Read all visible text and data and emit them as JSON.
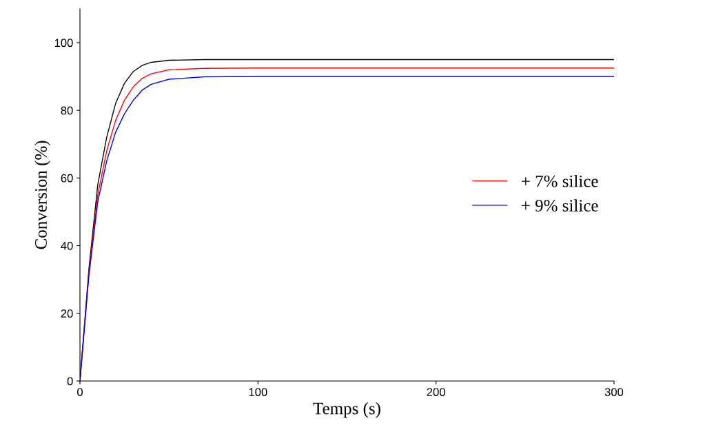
{
  "chart_data": {
    "type": "line",
    "xlabel": "Temps (s)",
    "ylabel": "Conversion (%)",
    "xlim": [
      0,
      300
    ],
    "ylim": [
      0,
      110
    ],
    "xticks": [
      0,
      100,
      200,
      300
    ],
    "yticks": [
      0,
      20,
      40,
      60,
      80,
      100
    ],
    "grid": false,
    "legend": "center right",
    "marker": "none",
    "line_style": "solid",
    "series": [
      {
        "color": "#000000",
        "x": [
          0,
          5,
          10,
          15,
          20,
          25,
          30,
          35,
          40,
          50,
          70,
          300
        ],
        "values": [
          0,
          33,
          58,
          72,
          82,
          88,
          91.5,
          93.3,
          94.2,
          94.8,
          95,
          95
        ]
      },
      {
        "name": "+ 7% silice",
        "color": "#ff0000",
        "x": [
          0,
          5,
          10,
          15,
          20,
          25,
          30,
          35,
          40,
          50,
          70,
          100,
          300
        ],
        "values": [
          0,
          32,
          55,
          68,
          77,
          83,
          87,
          89.5,
          90.8,
          92,
          92.4,
          92.5,
          92.5
        ]
      },
      {
        "name": "+ 9% silice",
        "color": "#0000ff",
        "x": [
          0,
          5,
          10,
          15,
          20,
          25,
          30,
          35,
          40,
          50,
          70,
          100,
          300
        ],
        "values": [
          0,
          31,
          53,
          65,
          73.5,
          79,
          83,
          86,
          87.7,
          89.2,
          89.9,
          90,
          90
        ]
      }
    ]
  }
}
